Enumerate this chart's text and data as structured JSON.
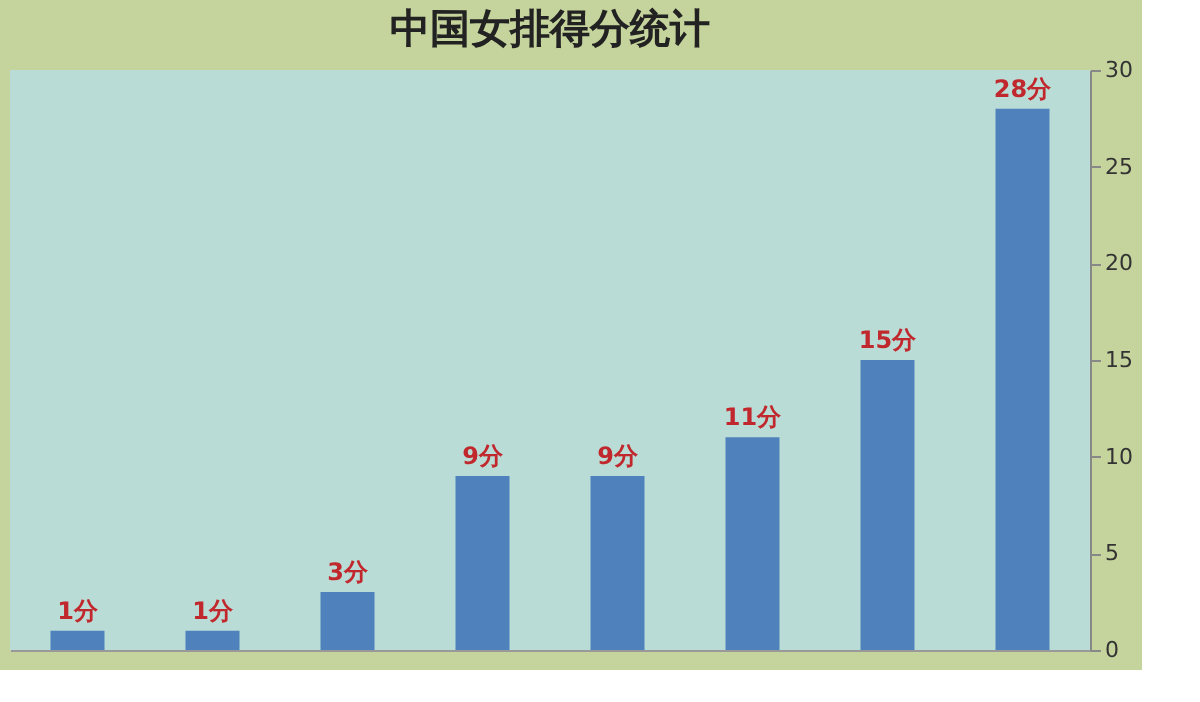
{
  "chart_data": {
    "type": "bar",
    "title": "中国女排得分统计",
    "categories": [
      null,
      null,
      null,
      null,
      null,
      null,
      null,
      null
    ],
    "values": [
      1,
      1,
      3,
      9,
      9,
      11,
      15,
      28
    ],
    "value_labels": [
      "1分",
      "1分",
      "3分",
      "9分",
      "9分",
      "11分",
      "15分",
      "28分"
    ],
    "color": "#4f81bd",
    "ylim": [
      0,
      30
    ],
    "yticks": [
      0,
      5,
      10,
      15,
      20,
      25,
      30
    ],
    "grid": false,
    "tick_labels": "y"
  }
}
